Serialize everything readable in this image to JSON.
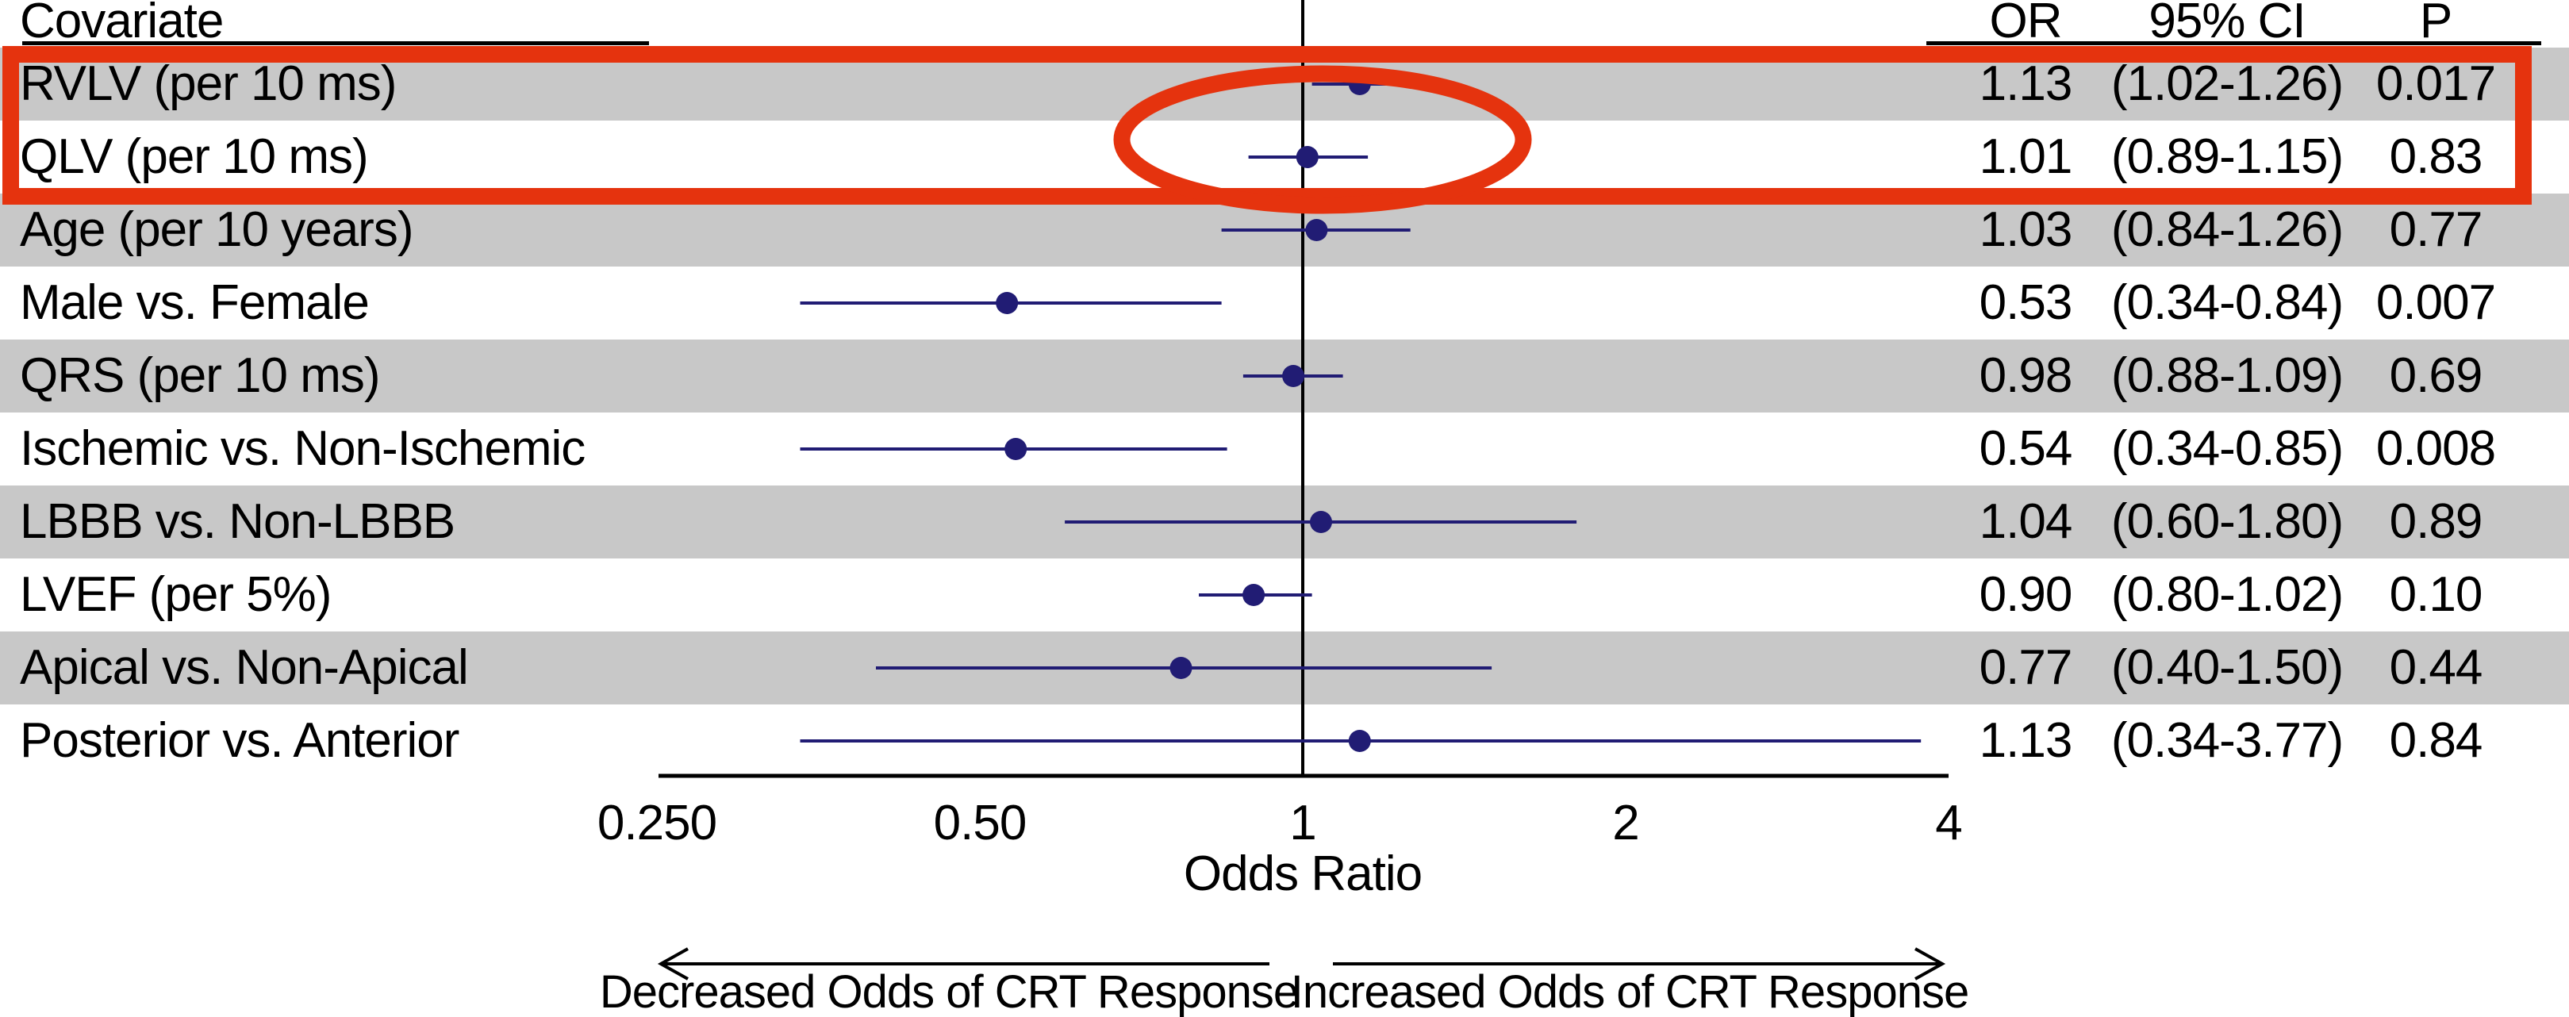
{
  "figure": {
    "columns": {
      "covariate": "Covariate",
      "or": "OR",
      "ci": "95% CI",
      "p": "P"
    },
    "colors": {
      "highlight_red": "#e5330e",
      "marker_navy": "#211c74",
      "band_gray": "#c8c8c8",
      "axis_black": "#000000",
      "background": "#ffffff"
    }
  },
  "chart_data": {
    "type": "scatter",
    "subtype": "forest-plot",
    "title": "",
    "xlabel": "Odds Ratio",
    "ylabel": "",
    "x_scale": "log2",
    "xlim": [
      0.25,
      4
    ],
    "reference_line": 1,
    "grid": false,
    "x_ticks": [
      "0.250",
      "0.50",
      "1",
      "2",
      "4"
    ],
    "x_tick_values": [
      0.25,
      0.5,
      1,
      2,
      4
    ],
    "rows": [
      {
        "covariate": "RVLV (per 10 ms)",
        "or": 1.13,
        "or_text": "1.13",
        "ci_low": 1.02,
        "ci_high": 1.26,
        "ci_text": "(1.02-1.26)",
        "p_text": "0.017",
        "shaded": true,
        "highlighted": true
      },
      {
        "covariate": "QLV (per 10 ms)",
        "or": 1.01,
        "or_text": "1.01",
        "ci_low": 0.89,
        "ci_high": 1.15,
        "ci_text": "(0.89-1.15)",
        "p_text": "0.83",
        "shaded": false,
        "highlighted": true
      },
      {
        "covariate": "Age (per 10 years)",
        "or": 1.03,
        "or_text": "1.03",
        "ci_low": 0.84,
        "ci_high": 1.26,
        "ci_text": "(0.84-1.26)",
        "p_text": "0.77",
        "shaded": true,
        "highlighted": false
      },
      {
        "covariate": "Male vs. Female",
        "or": 0.53,
        "or_text": "0.53",
        "ci_low": 0.34,
        "ci_high": 0.84,
        "ci_text": "(0.34-0.84)",
        "p_text": "0.007",
        "shaded": false,
        "highlighted": false
      },
      {
        "covariate": "QRS (per 10 ms)",
        "or": 0.98,
        "or_text": "0.98",
        "ci_low": 0.88,
        "ci_high": 1.09,
        "ci_text": "(0.88-1.09)",
        "p_text": "0.69",
        "shaded": true,
        "highlighted": false
      },
      {
        "covariate": "Ischemic vs. Non-Ischemic",
        "or": 0.54,
        "or_text": "0.54",
        "ci_low": 0.34,
        "ci_high": 0.85,
        "ci_text": "(0.34-0.85)",
        "p_text": "0.008",
        "shaded": false,
        "highlighted": false
      },
      {
        "covariate": "LBBB vs. Non-LBBB",
        "or": 1.04,
        "or_text": "1.04",
        "ci_low": 0.6,
        "ci_high": 1.8,
        "ci_text": "(0.60-1.80)",
        "p_text": "0.89",
        "shaded": true,
        "highlighted": false
      },
      {
        "covariate": "LVEF (per 5%)",
        "or": 0.9,
        "or_text": "0.90",
        "ci_low": 0.8,
        "ci_high": 1.02,
        "ci_text": "(0.80-1.02)",
        "p_text": "0.10",
        "shaded": false,
        "highlighted": false
      },
      {
        "covariate": "Apical vs. Non-Apical",
        "or": 0.77,
        "or_text": "0.77",
        "ci_low": 0.4,
        "ci_high": 1.5,
        "ci_text": "(0.40-1.50)",
        "p_text": "0.44",
        "shaded": true,
        "highlighted": false
      },
      {
        "covariate": "Posterior vs. Anterior",
        "or": 1.13,
        "or_text": "1.13",
        "ci_low": 0.34,
        "ci_high": 3.77,
        "ci_text": "(0.34-3.77)",
        "p_text": "0.84",
        "shaded": false,
        "highlighted": false
      }
    ],
    "annotations": {
      "left": "Decreased Odds of CRT Response",
      "right": "Increased Odds of CRT Response"
    },
    "legend_position": "none",
    "highlight": {
      "shapes": [
        "rectangle-outline",
        "ellipse-outline"
      ],
      "color": "#e5330e",
      "rows_highlighted": [
        "RVLV (per 10 ms)",
        "QLV (per 10 ms)"
      ]
    }
  }
}
